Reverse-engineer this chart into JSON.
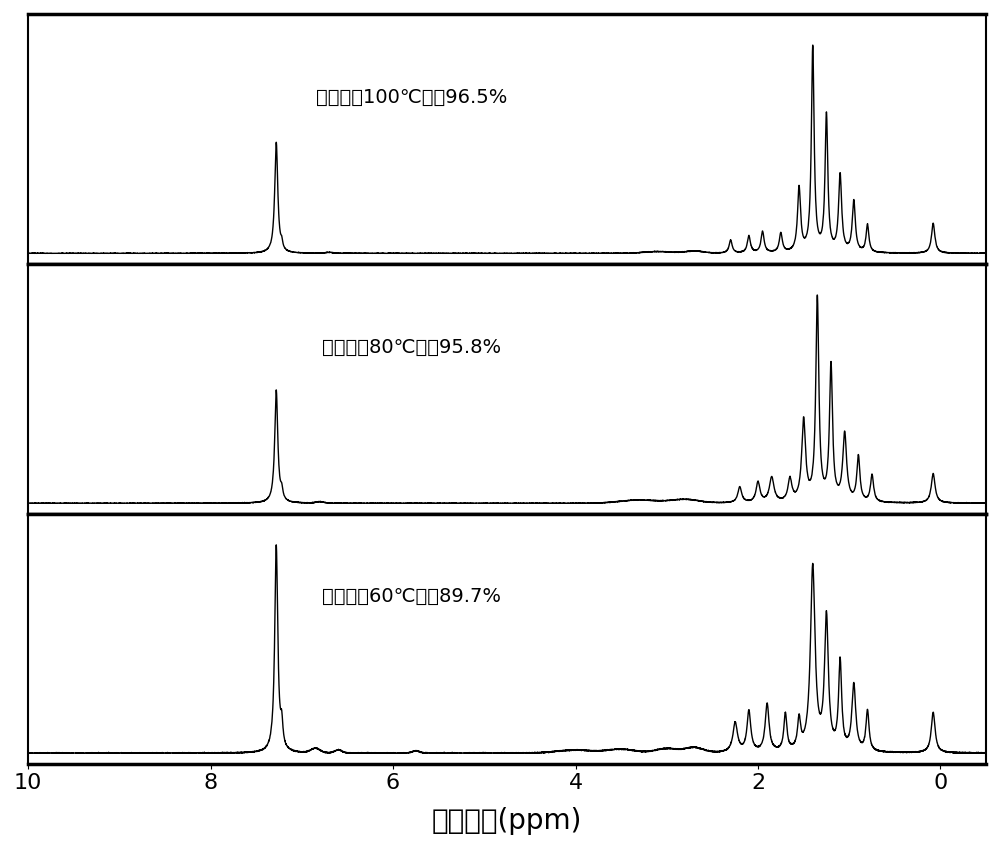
{
  "xlabel": "化学位移(ppm)",
  "xlabel_fontsize": 20,
  "tick_fontsize": 16,
  "xlim": [
    10,
    -0.5
  ],
  "xticks": [
    10,
    8,
    6,
    4,
    2,
    0
  ],
  "spectra": [
    {
      "label": "加氢度（60℃）：89.7%",
      "color": "#000000"
    },
    {
      "label": "加氢度（80℃）：95.8%",
      "color": "#000000"
    },
    {
      "label": "加氢度（100℃）：96.5%",
      "color": "#000000"
    }
  ],
  "background_color": "#ffffff",
  "linewidth": 1.0,
  "separator_linewidth": 2.5
}
